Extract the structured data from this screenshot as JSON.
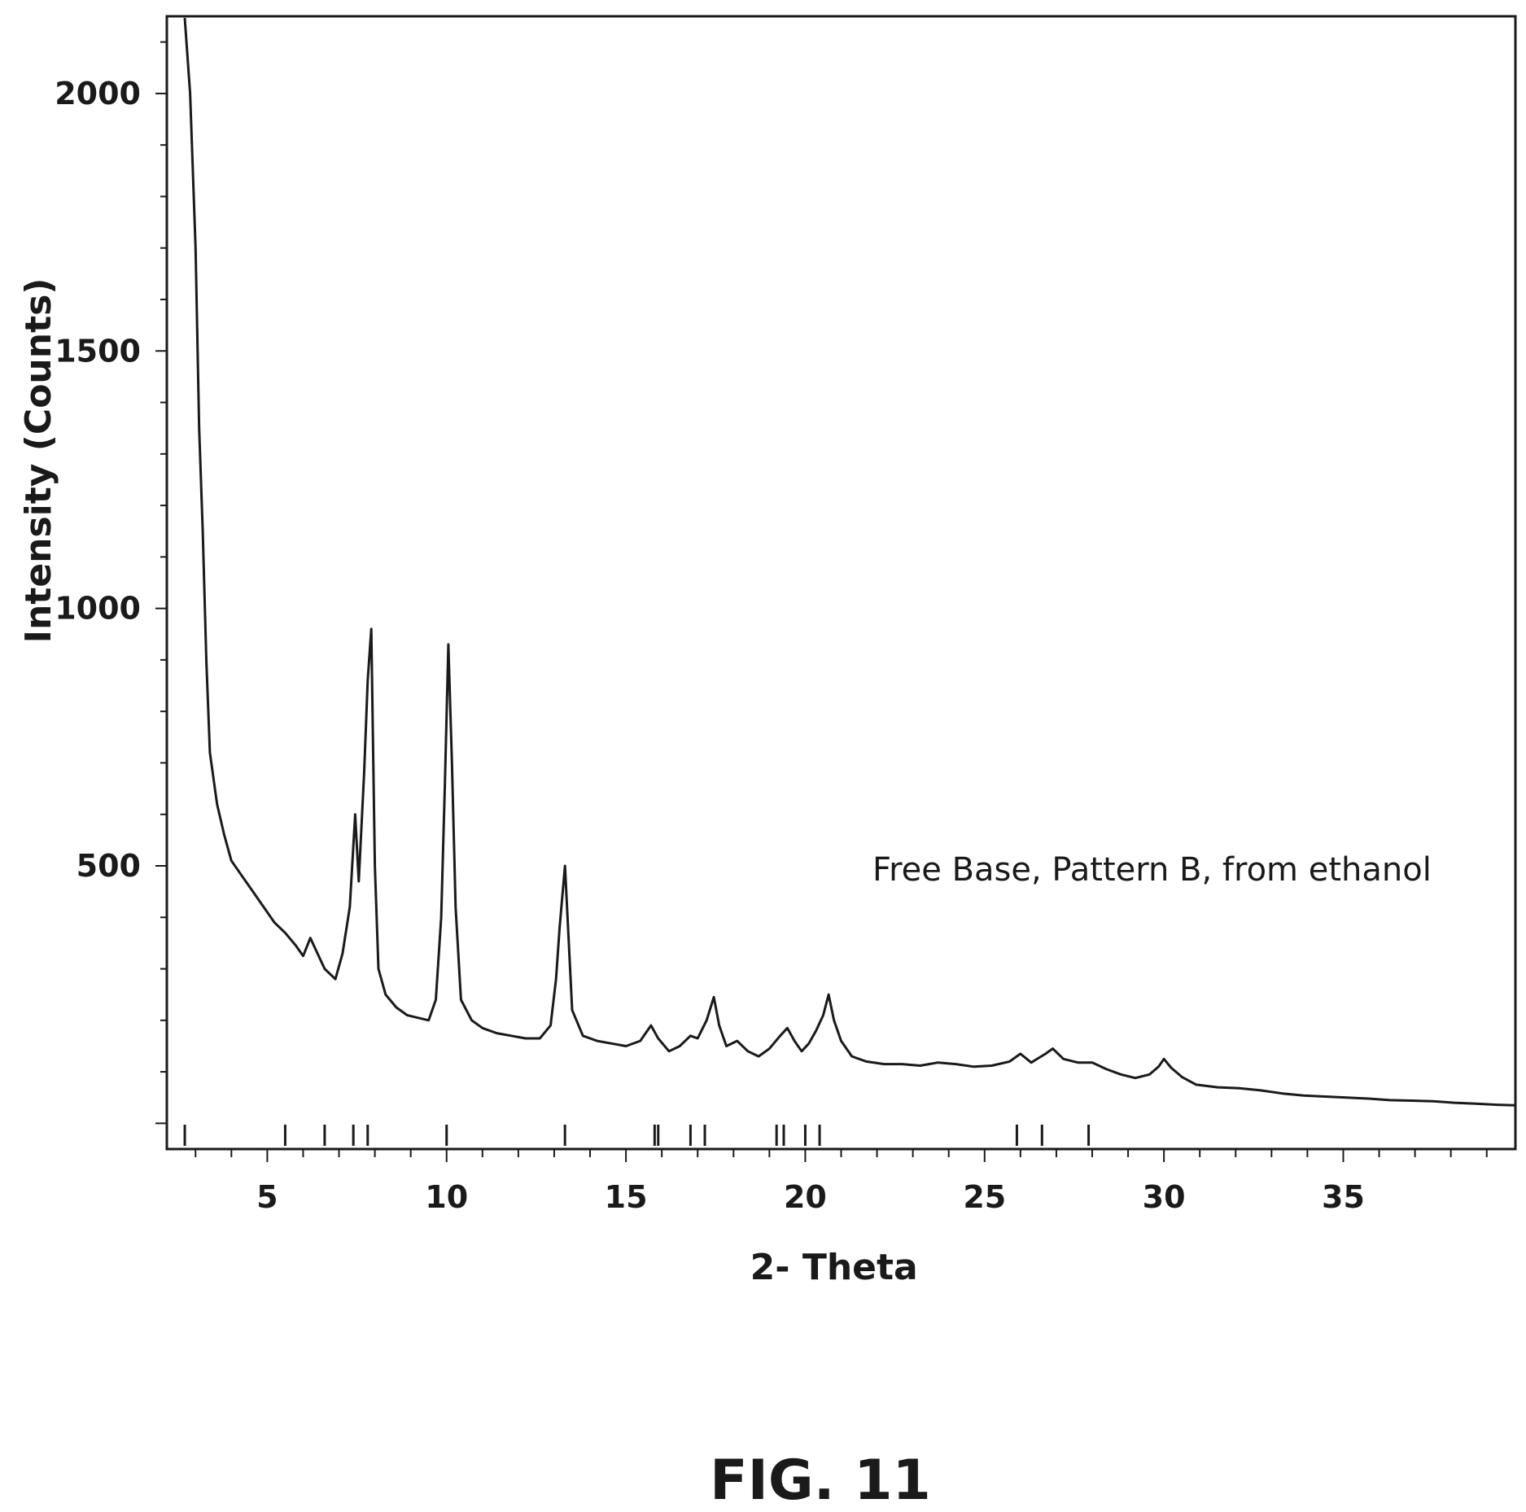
{
  "figure_caption": "FIG. 11",
  "chart_data": {
    "type": "line",
    "xlabel": "2- Theta",
    "ylabel": "Intensity (Counts)",
    "xlim": [
      2.2,
      39.8
    ],
    "ylim": [
      -50,
      2150
    ],
    "x_ticks": [
      5,
      10,
      15,
      20,
      25,
      30,
      35
    ],
    "y_ticks": [
      500,
      1000,
      1500,
      2000
    ],
    "grid": false,
    "annotation": "Free Base, Pattern B, from ethanol",
    "series": [
      {
        "color": "#1a1a1a",
        "points": [
          [
            2.7,
            2150
          ],
          [
            2.85,
            2000
          ],
          [
            3.0,
            1700
          ],
          [
            3.1,
            1350
          ],
          [
            3.2,
            1150
          ],
          [
            3.3,
            900
          ],
          [
            3.4,
            720
          ],
          [
            3.6,
            620
          ],
          [
            3.8,
            560
          ],
          [
            4.0,
            510
          ],
          [
            4.3,
            480
          ],
          [
            4.6,
            450
          ],
          [
            4.9,
            420
          ],
          [
            5.2,
            390
          ],
          [
            5.5,
            370
          ],
          [
            5.8,
            345
          ],
          [
            6.0,
            325
          ],
          [
            6.2,
            360
          ],
          [
            6.4,
            330
          ],
          [
            6.6,
            300
          ],
          [
            6.9,
            280
          ],
          [
            7.1,
            330
          ],
          [
            7.3,
            420
          ],
          [
            7.45,
            600
          ],
          [
            7.55,
            470
          ],
          [
            7.7,
            680
          ],
          [
            7.8,
            860
          ],
          [
            7.9,
            960
          ],
          [
            8.0,
            500
          ],
          [
            8.1,
            300
          ],
          [
            8.3,
            250
          ],
          [
            8.6,
            225
          ],
          [
            8.9,
            210
          ],
          [
            9.2,
            205
          ],
          [
            9.5,
            200
          ],
          [
            9.7,
            240
          ],
          [
            9.85,
            400
          ],
          [
            9.95,
            650
          ],
          [
            10.05,
            930
          ],
          [
            10.15,
            700
          ],
          [
            10.25,
            420
          ],
          [
            10.4,
            240
          ],
          [
            10.7,
            200
          ],
          [
            11.0,
            185
          ],
          [
            11.4,
            175
          ],
          [
            11.8,
            170
          ],
          [
            12.2,
            165
          ],
          [
            12.6,
            165
          ],
          [
            12.9,
            190
          ],
          [
            13.05,
            280
          ],
          [
            13.15,
            380
          ],
          [
            13.3,
            500
          ],
          [
            13.4,
            360
          ],
          [
            13.5,
            220
          ],
          [
            13.8,
            170
          ],
          [
            14.2,
            160
          ],
          [
            14.6,
            155
          ],
          [
            15.0,
            150
          ],
          [
            15.4,
            160
          ],
          [
            15.7,
            190
          ],
          [
            15.9,
            165
          ],
          [
            16.2,
            140
          ],
          [
            16.5,
            150
          ],
          [
            16.8,
            170
          ],
          [
            17.0,
            165
          ],
          [
            17.25,
            200
          ],
          [
            17.45,
            245
          ],
          [
            17.6,
            190
          ],
          [
            17.8,
            150
          ],
          [
            18.1,
            160
          ],
          [
            18.4,
            140
          ],
          [
            18.7,
            130
          ],
          [
            19.0,
            145
          ],
          [
            19.3,
            170
          ],
          [
            19.5,
            185
          ],
          [
            19.7,
            160
          ],
          [
            19.9,
            140
          ],
          [
            20.1,
            155
          ],
          [
            20.3,
            180
          ],
          [
            20.5,
            210
          ],
          [
            20.65,
            250
          ],
          [
            20.8,
            200
          ],
          [
            21.0,
            160
          ],
          [
            21.3,
            130
          ],
          [
            21.7,
            120
          ],
          [
            22.2,
            115
          ],
          [
            22.7,
            115
          ],
          [
            23.2,
            112
          ],
          [
            23.7,
            118
          ],
          [
            24.2,
            115
          ],
          [
            24.7,
            110
          ],
          [
            25.2,
            112
          ],
          [
            25.7,
            120
          ],
          [
            26.0,
            135
          ],
          [
            26.3,
            118
          ],
          [
            26.7,
            135
          ],
          [
            26.9,
            145
          ],
          [
            27.2,
            125
          ],
          [
            27.6,
            118
          ],
          [
            28.0,
            118
          ],
          [
            28.4,
            105
          ],
          [
            28.8,
            95
          ],
          [
            29.2,
            88
          ],
          [
            29.6,
            95
          ],
          [
            29.85,
            110
          ],
          [
            30.0,
            125
          ],
          [
            30.2,
            108
          ],
          [
            30.5,
            90
          ],
          [
            30.9,
            75
          ],
          [
            31.5,
            70
          ],
          [
            32.1,
            68
          ],
          [
            32.7,
            64
          ],
          [
            33.3,
            58
          ],
          [
            33.9,
            54
          ],
          [
            34.5,
            52
          ],
          [
            35.1,
            50
          ],
          [
            35.7,
            48
          ],
          [
            36.3,
            45
          ],
          [
            36.9,
            44
          ],
          [
            37.5,
            43
          ],
          [
            38.1,
            40
          ],
          [
            38.7,
            38
          ],
          [
            39.3,
            36
          ],
          [
            39.8,
            35
          ]
        ]
      }
    ],
    "reference_peaks": [
      2.7,
      5.5,
      6.6,
      7.4,
      7.8,
      10.0,
      13.3,
      15.8,
      15.9,
      16.8,
      17.2,
      19.2,
      19.4,
      20.0,
      20.4,
      25.9,
      26.6,
      27.9
    ]
  }
}
